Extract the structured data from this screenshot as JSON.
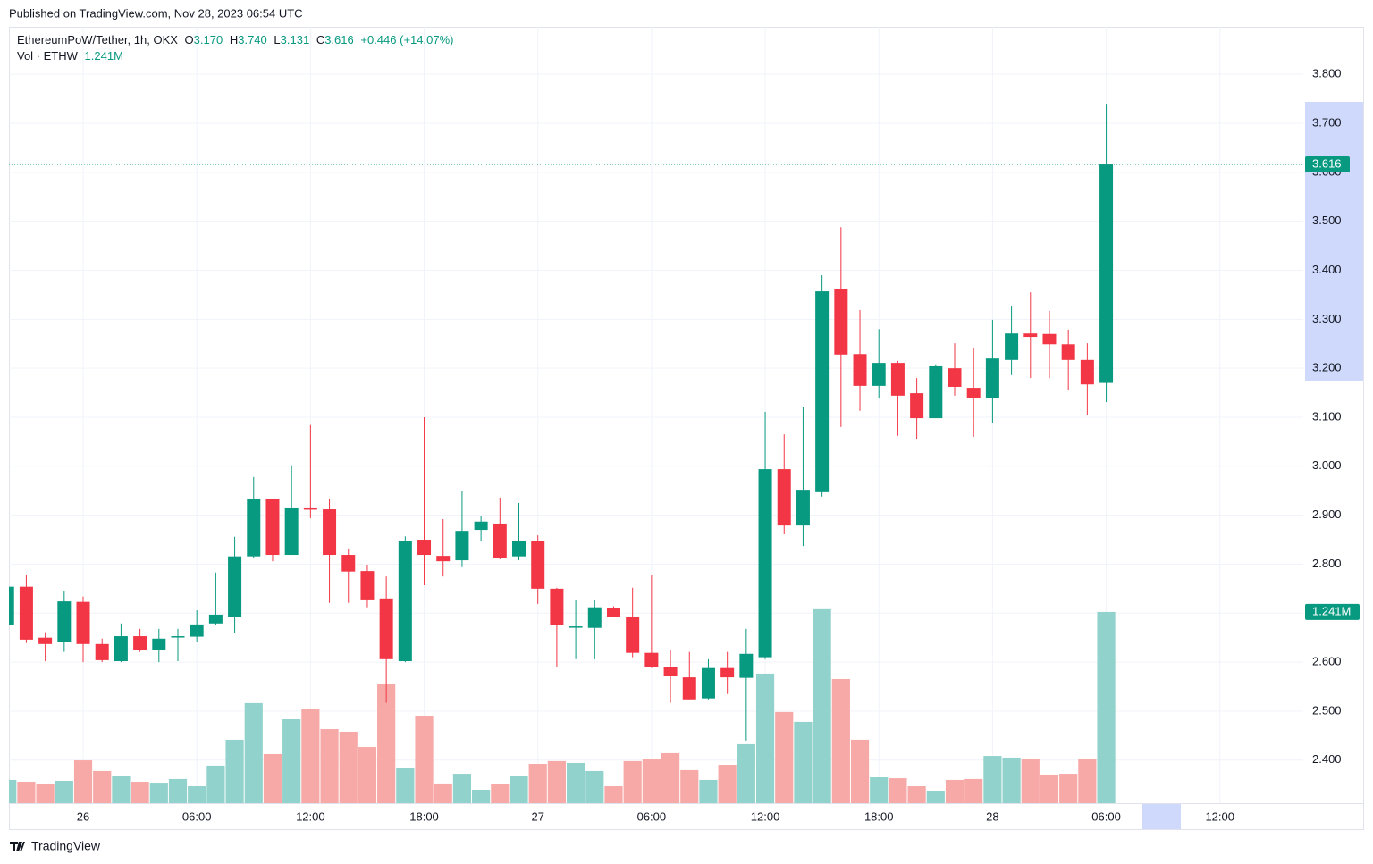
{
  "published": "Published on TradingView.com, Nov 28, 2023 06:54 UTC",
  "brand": "TradingView",
  "chart_data": {
    "type": "candlestick",
    "legend": {
      "symbol": "EthereumPoW/Tether, 1h, OKX",
      "fields": [
        {
          "label": "O",
          "value": "3.170"
        },
        {
          "label": "H",
          "value": "3.740"
        },
        {
          "label": "L",
          "value": "3.131"
        },
        {
          "label": "C",
          "value": "3.616"
        }
      ],
      "change": "+0.446 (+14.07%)",
      "volume_name": "Vol · ETHW",
      "volume": "1.241M"
    },
    "last_price_label": "3.616",
    "last_volume_label": "1.241M",
    "up_color": "#089981",
    "down_color": "#f23645",
    "up_volume_color": "#92d2cc",
    "down_volume_color": "#f7a9a7",
    "grid": true,
    "x": [
      "2023-11-25 20:00",
      "2023-11-25 21:00",
      "2023-11-25 22:00",
      "2023-11-25 23:00",
      "2023-11-26 00:00",
      "2023-11-26 01:00",
      "2023-11-26 02:00",
      "2023-11-26 03:00",
      "2023-11-26 04:00",
      "2023-11-26 05:00",
      "2023-11-26 06:00",
      "2023-11-26 07:00",
      "2023-11-26 08:00",
      "2023-11-26 09:00",
      "2023-11-26 10:00",
      "2023-11-26 11:00",
      "2023-11-26 12:00",
      "2023-11-26 13:00",
      "2023-11-26 14:00",
      "2023-11-26 15:00",
      "2023-11-26 16:00",
      "2023-11-26 17:00",
      "2023-11-26 18:00",
      "2023-11-26 19:00",
      "2023-11-26 20:00",
      "2023-11-26 21:00",
      "2023-11-26 22:00",
      "2023-11-26 23:00",
      "2023-11-27 00:00",
      "2023-11-27 01:00",
      "2023-11-27 02:00",
      "2023-11-27 03:00",
      "2023-11-27 04:00",
      "2023-11-27 05:00",
      "2023-11-27 06:00",
      "2023-11-27 07:00",
      "2023-11-27 08:00",
      "2023-11-27 09:00",
      "2023-11-27 10:00",
      "2023-11-27 11:00",
      "2023-11-27 12:00",
      "2023-11-27 13:00",
      "2023-11-27 14:00",
      "2023-11-27 15:00",
      "2023-11-27 16:00",
      "2023-11-27 17:00",
      "2023-11-27 18:00",
      "2023-11-27 19:00",
      "2023-11-27 20:00",
      "2023-11-27 21:00",
      "2023-11-27 22:00",
      "2023-11-27 23:00",
      "2023-11-28 00:00",
      "2023-11-28 01:00",
      "2023-11-28 02:00",
      "2023-11-28 03:00",
      "2023-11-28 04:00",
      "2023-11-28 05:00",
      "2023-11-28 06:00"
    ],
    "open": [
      2.675,
      2.754,
      2.65,
      2.641,
      2.723,
      2.637,
      2.602,
      2.653,
      2.624,
      2.652,
      2.652,
      2.679,
      2.693,
      2.816,
      2.934,
      2.819,
      2.914,
      2.912,
      2.819,
      2.786,
      2.73,
      2.602,
      2.85,
      2.817,
      2.808,
      2.87,
      2.883,
      2.816,
      2.848,
      2.75,
      2.672,
      2.67,
      2.71,
      2.693,
      2.619,
      2.591,
      2.569,
      2.526,
      2.588,
      2.568,
      2.61,
      2.994,
      2.879,
      2.947,
      3.361,
      3.229,
      3.164,
      3.211,
      3.149,
      3.098,
      3.2,
      3.16,
      3.14,
      3.217,
      3.271,
      3.27,
      3.249,
      3.217,
      3.17
    ],
    "high": [
      2.757,
      2.779,
      2.661,
      2.746,
      2.734,
      2.648,
      2.679,
      2.668,
      2.668,
      2.668,
      2.706,
      2.783,
      2.856,
      2.978,
      2.934,
      3.002,
      3.084,
      2.934,
      2.832,
      2.799,
      2.775,
      2.857,
      3.1,
      2.892,
      2.949,
      2.899,
      2.936,
      2.925,
      2.859,
      2.752,
      2.726,
      2.728,
      2.714,
      2.752,
      2.777,
      2.624,
      2.621,
      2.606,
      2.621,
      2.668,
      3.111,
      3.065,
      3.12,
      3.39,
      3.488,
      3.319,
      3.28,
      3.215,
      3.18,
      3.208,
      3.251,
      3.242,
      3.299,
      3.328,
      3.355,
      3.317,
      3.279,
      3.251,
      3.74
    ],
    "low": [
      2.672,
      2.639,
      2.602,
      2.621,
      2.6,
      2.6,
      2.6,
      2.621,
      2.6,
      2.602,
      2.642,
      2.675,
      2.659,
      2.812,
      2.806,
      2.819,
      2.894,
      2.721,
      2.721,
      2.712,
      2.517,
      2.6,
      2.757,
      2.775,
      2.794,
      2.847,
      2.81,
      2.808,
      2.719,
      2.591,
      2.606,
      2.606,
      2.692,
      2.61,
      2.588,
      2.517,
      2.524,
      2.524,
      2.535,
      2.44,
      2.606,
      2.861,
      2.837,
      2.938,
      3.08,
      3.113,
      3.138,
      3.062,
      3.056,
      3.098,
      3.144,
      3.06,
      3.089,
      3.186,
      3.18,
      3.18,
      3.156,
      3.105,
      3.131
    ],
    "close": [
      2.754,
      2.646,
      2.637,
      2.724,
      2.637,
      2.604,
      2.653,
      2.624,
      2.648,
      2.653,
      2.677,
      2.697,
      2.816,
      2.934,
      2.819,
      2.914,
      2.912,
      2.819,
      2.785,
      2.728,
      2.606,
      2.848,
      2.819,
      2.806,
      2.868,
      2.887,
      2.812,
      2.847,
      2.75,
      2.675,
      2.673,
      2.712,
      2.693,
      2.619,
      2.591,
      2.571,
      2.524,
      2.588,
      2.569,
      2.617,
      2.994,
      2.879,
      2.952,
      3.357,
      3.228,
      3.164,
      3.211,
      3.144,
      3.098,
      3.204,
      3.162,
      3.14,
      3.22,
      3.271,
      3.264,
      3.249,
      3.217,
      3.167,
      3.616
    ],
    "volume": [
      0.151,
      0.139,
      0.122,
      0.145,
      0.278,
      0.209,
      0.174,
      0.139,
      0.133,
      0.157,
      0.11,
      0.244,
      0.412,
      0.65,
      0.319,
      0.545,
      0.609,
      0.481,
      0.464,
      0.365,
      0.777,
      0.226,
      0.568,
      0.128,
      0.191,
      0.087,
      0.122,
      0.174,
      0.255,
      0.273,
      0.261,
      0.209,
      0.11,
      0.273,
      0.284,
      0.325,
      0.215,
      0.151,
      0.249,
      0.383,
      0.841,
      0.592,
      0.528,
      1.259,
      0.806,
      0.412,
      0.168,
      0.162,
      0.11,
      0.081,
      0.151,
      0.157,
      0.307,
      0.296,
      0.29,
      0.186,
      0.191,
      0.29,
      1.241
    ],
    "volume_ylim": [
      0,
      4
    ],
    "xlim": [
      "2023-11-25 20:05",
      "2023-11-28 16:24"
    ],
    "xticks": [
      {
        "value": "2023-11-26 00:00",
        "label": "26"
      },
      {
        "value": "2023-11-26 06:00",
        "label": "06:00"
      },
      {
        "value": "2023-11-26 12:00",
        "label": "12:00"
      },
      {
        "value": "2023-11-26 18:00",
        "label": "18:00"
      },
      {
        "value": "2023-11-27 00:00",
        "label": "27"
      },
      {
        "value": "2023-11-27 06:00",
        "label": "06:00"
      },
      {
        "value": "2023-11-27 12:00",
        "label": "12:00"
      },
      {
        "value": "2023-11-27 18:00",
        "label": "18:00"
      },
      {
        "value": "2023-11-28 00:00",
        "label": "28"
      },
      {
        "value": "2023-11-28 06:00",
        "label": "06:00"
      },
      {
        "value": "2023-11-28 12:00",
        "label": "12:00"
      }
    ],
    "ylim": [
      2.312,
      3.897
    ],
    "yticks": [
      {
        "value": 2.4,
        "label": "2.400"
      },
      {
        "value": 2.5,
        "label": "2.500"
      },
      {
        "value": 2.6,
        "label": "2.600"
      },
      {
        "value": 2.7,
        "label": "2.700"
      },
      {
        "value": 2.8,
        "label": "2.800"
      },
      {
        "value": 2.9,
        "label": "2.900"
      },
      {
        "value": 3.0,
        "label": "3.000"
      },
      {
        "value": 3.1,
        "label": "3.100"
      },
      {
        "value": 3.2,
        "label": "3.200"
      },
      {
        "value": 3.3,
        "label": "3.300"
      },
      {
        "value": 3.4,
        "label": "3.400"
      },
      {
        "value": 3.5,
        "label": "3.500"
      },
      {
        "value": 3.6,
        "label": "3.600"
      },
      {
        "value": 3.7,
        "label": "3.700"
      },
      {
        "value": 3.8,
        "label": "3.800"
      }
    ]
  }
}
